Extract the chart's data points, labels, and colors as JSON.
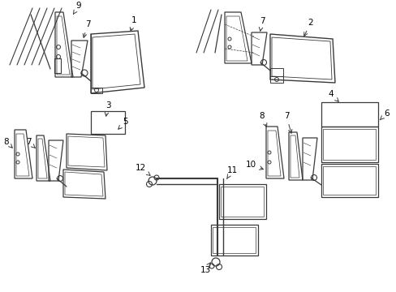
{
  "bg_color": "#ffffff",
  "line_color": "#3a3a3a",
  "text_color": "#000000",
  "fig_width": 4.89,
  "fig_height": 3.6,
  "dpi": 100
}
